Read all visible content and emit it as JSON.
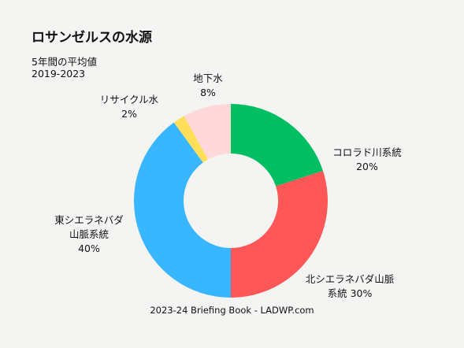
{
  "chart_data": {
    "type": "donut",
    "title": "ロサンゼルスの水源",
    "subtitle": "5年間の平均値",
    "period": "2019-2023",
    "categories": [
      "コロラド川系統",
      "北シエラネバダ山脈\n系統",
      "東シエラネバダ\n山脈系統",
      "リサイクル水",
      "地下水"
    ],
    "values": [
      20,
      30,
      40,
      2,
      8
    ],
    "value_labels": [
      "20%",
      "30%",
      "40%",
      "2%",
      "8%"
    ],
    "colors": [
      "#00bf63",
      "#ff5757",
      "#38b6ff",
      "#ffde59",
      "#ffd9d9"
    ],
    "source": "2023-24 Briefing Book - LADWP.com"
  }
}
